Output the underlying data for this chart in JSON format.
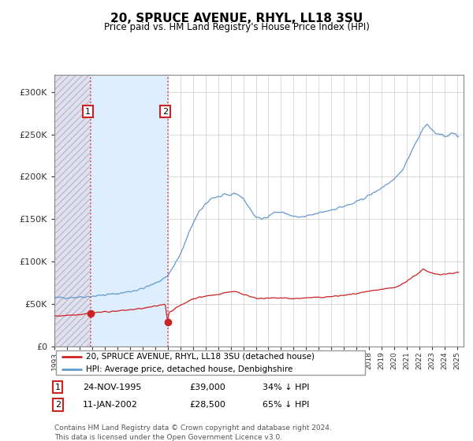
{
  "title": "20, SPRUCE AVENUE, RHYL, LL18 3SU",
  "subtitle": "Price paid vs. HM Land Registry's House Price Index (HPI)",
  "sale1_label": "24-NOV-1995",
  "sale1_price": 39000,
  "sale1_hpi_pct": "34% ↓ HPI",
  "sale1_year": 1995.9,
  "sale2_label": "11-JAN-2002",
  "sale2_price": 28500,
  "sale2_hpi_pct": "65% ↓ HPI",
  "sale2_year": 2002.03,
  "red_line_color": "#cc2222",
  "blue_line_color": "#6699cc",
  "vline_color": "#dd4444",
  "shade_color": "#ddeeff",
  "hatch_facecolor": "#e0e0ee",
  "hatch_edgecolor": "#bbbbcc",
  "legend_red_label": "20, SPRUCE AVENUE, RHYL, LL18 3SU (detached house)",
  "legend_blue_label": "HPI: Average price, detached house, Denbighshire",
  "footer": "Contains HM Land Registry data © Crown copyright and database right 2024.\nThis data is licensed under the Open Government Licence v3.0.",
  "ylim_max": 320000,
  "ylabel_ticks": [
    0,
    50000,
    100000,
    150000,
    200000,
    250000,
    300000
  ],
  "ylabel_labels": [
    "£0",
    "£50K",
    "£100K",
    "£150K",
    "£200K",
    "£250K",
    "£300K"
  ],
  "year_start": 1993,
  "year_end": 2025
}
